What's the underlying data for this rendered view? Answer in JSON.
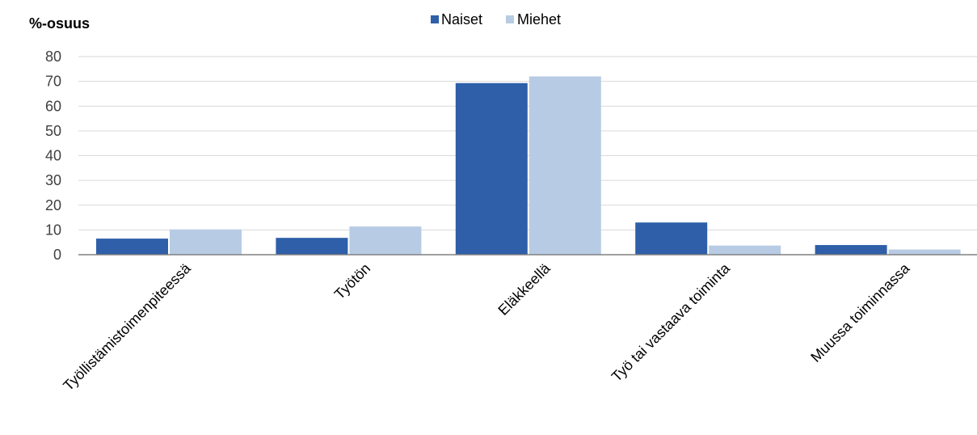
{
  "chart_data": {
    "type": "bar",
    "ylabel": "%-osuus",
    "categories": [
      "Työllistämistoimenpiteessä",
      "Työtön",
      "Eläkkeellä",
      "Työ tai vastaava toiminta",
      "Muussa toiminnassa"
    ],
    "series": [
      {
        "name": "Naiset",
        "color": "#2E5FA8",
        "values": [
          6.5,
          6.8,
          69.3,
          13.0,
          3.9
        ]
      },
      {
        "name": "Miehet",
        "color": "#B7CCE4",
        "values": [
          10.2,
          11.4,
          72.0,
          3.7,
          2.1
        ]
      }
    ],
    "ylim": [
      0,
      80
    ],
    "yticks": [
      0,
      10,
      20,
      30,
      40,
      50,
      60,
      70,
      80
    ],
    "grid": true,
    "legend_position": "top-center"
  }
}
